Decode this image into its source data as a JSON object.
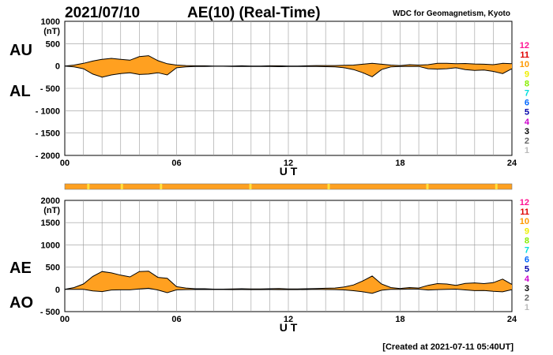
{
  "header": {
    "date": "2021/07/10",
    "title": "AE(10) (Real-Time)",
    "source": "WDC for Geomagnetism, Kyoto"
  },
  "footer": {
    "created": "[Created at 2021-07-11 05:40UT]"
  },
  "colors": {
    "fill": "#FFA020",
    "grid": "#999999",
    "station_bar": "#FFA020",
    "station_bar_highlight": "#FFE040"
  },
  "station_key": {
    "labels": [
      "12",
      "11",
      "10",
      "9",
      "8",
      "7",
      "6",
      "5",
      "4",
      "3",
      "2",
      "1"
    ],
    "colors": [
      "#FF1493",
      "#E00000",
      "#FF9900",
      "#EEEE00",
      "#88EE00",
      "#00DDDD",
      "#0066FF",
      "#0000AA",
      "#CC00CC",
      "#000000",
      "#666666",
      "#BBBBBB"
    ]
  },
  "station_bar_highlights": [
    1.2,
    3.0,
    5.1,
    9.9,
    14.1,
    19.4,
    23.1
  ],
  "chart_data": [
    {
      "type": "area",
      "panel": "AU/AL",
      "xlabel": "U T",
      "unit": "(nT)",
      "side_labels": [
        "AU",
        "AL"
      ],
      "xlim": [
        0,
        24
      ],
      "ylim": [
        -2000,
        1000
      ],
      "xticks": [
        0,
        6,
        12,
        18,
        24
      ],
      "xtick_labels": [
        "00",
        "06",
        "12",
        "18",
        "24"
      ],
      "yticks": [
        1000,
        500,
        0,
        -500,
        -1000,
        -1500,
        -2000
      ],
      "ytick_labels": [
        "1000",
        "500",
        "0",
        "- 500",
        "- 1000",
        "- 1500",
        "- 2000"
      ],
      "grid": true,
      "x": [
        0,
        0.5,
        1,
        1.5,
        2,
        2.5,
        3,
        3.5,
        4,
        4.5,
        5,
        5.5,
        6,
        6.5,
        7,
        7.5,
        8,
        8.5,
        9,
        9.5,
        10,
        10.5,
        11,
        11.5,
        12,
        12.5,
        13,
        13.5,
        14,
        14.5,
        15,
        15.5,
        16,
        16.5,
        17,
        17.5,
        18,
        18.5,
        19,
        19.5,
        20,
        20.5,
        21,
        21.5,
        22,
        22.5,
        23,
        23.5,
        24
      ],
      "series": [
        {
          "name": "AU",
          "values": [
            0,
            20,
            60,
            110,
            150,
            170,
            150,
            130,
            210,
            230,
            120,
            50,
            20,
            10,
            5,
            5,
            0,
            0,
            0,
            5,
            0,
            0,
            5,
            5,
            0,
            0,
            5,
            10,
            10,
            10,
            15,
            20,
            40,
            60,
            40,
            20,
            10,
            30,
            20,
            30,
            60,
            60,
            50,
            55,
            45,
            40,
            30,
            60,
            50
          ]
        },
        {
          "name": "AL",
          "values": [
            0,
            -20,
            -60,
            -180,
            -250,
            -200,
            -170,
            -150,
            -190,
            -180,
            -150,
            -200,
            -40,
            -20,
            -10,
            -10,
            -5,
            -5,
            -10,
            -10,
            -10,
            -10,
            -10,
            -15,
            -10,
            -10,
            -10,
            -10,
            -15,
            -20,
            -40,
            -80,
            -150,
            -240,
            -80,
            -20,
            -10,
            -10,
            -10,
            -60,
            -70,
            -60,
            -40,
            -80,
            -100,
            -90,
            -120,
            -170,
            -60
          ]
        }
      ]
    },
    {
      "type": "area",
      "panel": "AE/AO",
      "xlabel": "U T",
      "unit": "(nT)",
      "side_labels": [
        "AE",
        "AO"
      ],
      "xlim": [
        0,
        24
      ],
      "ylim": [
        -500,
        2000
      ],
      "xticks": [
        0,
        6,
        12,
        18,
        24
      ],
      "xtick_labels": [
        "00",
        "06",
        "12",
        "18",
        "24"
      ],
      "yticks": [
        2000,
        1500,
        1000,
        500,
        0,
        -500
      ],
      "ytick_labels": [
        "2000",
        "1500",
        "1000",
        "500",
        "0",
        "- 500"
      ],
      "grid": true,
      "x": [
        0,
        0.5,
        1,
        1.5,
        2,
        2.5,
        3,
        3.5,
        4,
        4.5,
        5,
        5.5,
        6,
        6.5,
        7,
        7.5,
        8,
        8.5,
        9,
        9.5,
        10,
        10.5,
        11,
        11.5,
        12,
        12.5,
        13,
        13.5,
        14,
        14.5,
        15,
        15.5,
        16,
        16.5,
        17,
        17.5,
        18,
        18.5,
        19,
        19.5,
        20,
        20.5,
        21,
        21.5,
        22,
        22.5,
        23,
        23.5,
        24
      ],
      "series": [
        {
          "name": "AE",
          "values": [
            0,
            40,
            120,
            290,
            400,
            370,
            320,
            280,
            400,
            410,
            270,
            250,
            60,
            30,
            15,
            15,
            5,
            5,
            10,
            15,
            10,
            10,
            15,
            20,
            10,
            10,
            15,
            20,
            25,
            30,
            55,
            100,
            190,
            300,
            120,
            40,
            20,
            40,
            30,
            90,
            130,
            120,
            90,
            135,
            145,
            130,
            150,
            230,
            110
          ]
        },
        {
          "name": "AO",
          "values": [
            0,
            0,
            0,
            -35,
            -50,
            -15,
            -10,
            -10,
            10,
            25,
            -15,
            -75,
            -10,
            -5,
            -3,
            -3,
            -3,
            -3,
            -5,
            -3,
            -5,
            -5,
            -3,
            -5,
            -5,
            -5,
            -3,
            0,
            -3,
            -5,
            -13,
            -30,
            -55,
            -90,
            -20,
            0,
            0,
            10,
            5,
            -15,
            -5,
            0,
            5,
            -13,
            -28,
            -25,
            -45,
            -55,
            -5
          ]
        }
      ]
    }
  ]
}
